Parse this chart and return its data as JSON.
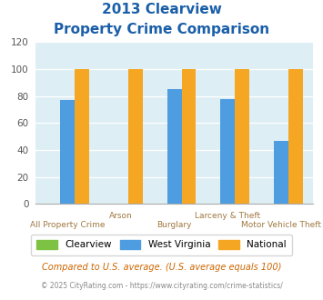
{
  "title_line1": "2013 Clearview",
  "title_line2": "Property Crime Comparison",
  "categories": [
    "All Property Crime",
    "Arson",
    "Burglary",
    "Larceny & Theft",
    "Motor Vehicle Theft"
  ],
  "clearview_values": [
    0,
    0,
    0,
    0,
    0
  ],
  "west_virginia_values": [
    77,
    0,
    85,
    78,
    47
  ],
  "national_values": [
    100,
    100,
    100,
    100,
    100
  ],
  "ylim": [
    0,
    120
  ],
  "yticks": [
    0,
    20,
    40,
    60,
    80,
    100,
    120
  ],
  "color_clearview": "#7dc242",
  "color_wv": "#4d9de0",
  "color_national": "#f5a623",
  "title_color": "#1a5fa8",
  "xlabel_top_labels": [
    "",
    "Arson",
    "",
    "Larceny & Theft",
    ""
  ],
  "xlabel_bot_labels": [
    "All Property Crime",
    "",
    "Burglary",
    "",
    "Motor Vehicle Theft"
  ],
  "xlabel_color": "#a07840",
  "background_color": "#ddeef4",
  "legend_labels": [
    "Clearview",
    "West Virginia",
    "National"
  ],
  "footnote1": "Compared to U.S. average. (U.S. average equals 100)",
  "footnote2": "© 2025 CityRating.com - https://www.cityrating.com/crime-statistics/",
  "footnote1_color": "#cc6600",
  "footnote2_color": "#888888"
}
